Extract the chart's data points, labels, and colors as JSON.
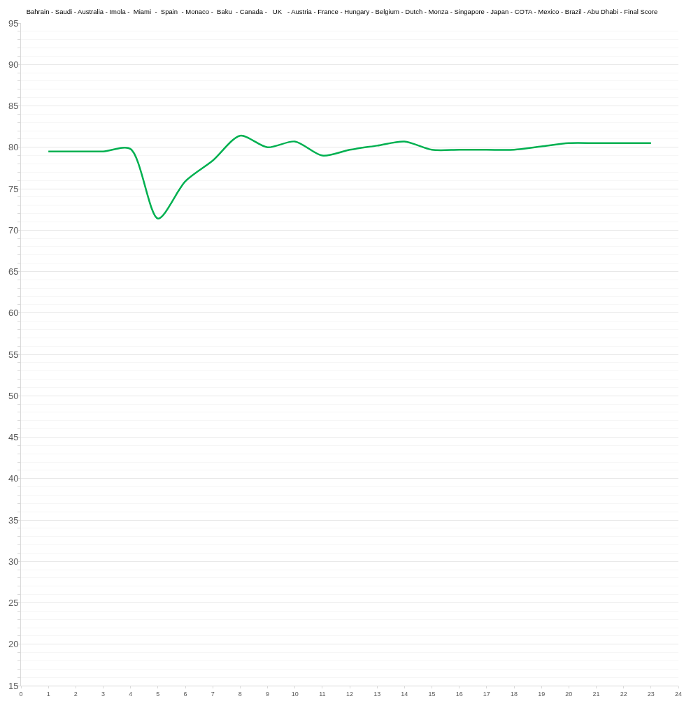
{
  "chart_data": {
    "type": "line",
    "title": "Bahrain - Saudi - Australia - Imola -  Miami  -  Spain  - Monaco -  Baku  - Canada -   UK   - Austria - France - Hungary - Belgium - Dutch - Monza - Singapore - Japan - COTA - Mexico - Brazil - Abu Dhabi - Final Score",
    "x": [
      1,
      2,
      3,
      4,
      5,
      6,
      7,
      8,
      9,
      10,
      11,
      12,
      13,
      14,
      15,
      16,
      17,
      18,
      19,
      20,
      21,
      22,
      23
    ],
    "series": [
      {
        "color": "#00b050",
        "values": [
          79.5,
          79.5,
          79.5,
          79.8,
          71.4,
          75.9,
          78.4,
          81.4,
          80.0,
          80.7,
          79.0,
          79.7,
          80.2,
          80.7,
          79.7,
          79.7,
          79.7,
          79.7,
          80.1,
          80.5,
          80.5,
          80.5,
          80.5
        ]
      }
    ],
    "xlim": [
      0,
      24
    ],
    "xticks": [
      0,
      1,
      2,
      3,
      4,
      5,
      6,
      7,
      8,
      9,
      10,
      11,
      12,
      13,
      14,
      15,
      16,
      17,
      18,
      19,
      20,
      21,
      22,
      23,
      24
    ],
    "ylim": [
      15,
      95
    ],
    "yticks": [
      15,
      20,
      25,
      30,
      35,
      40,
      45,
      50,
      55,
      60,
      65,
      70,
      75,
      80,
      85,
      90,
      95
    ],
    "grid": "y",
    "marker": "none",
    "line_style": "solid"
  }
}
